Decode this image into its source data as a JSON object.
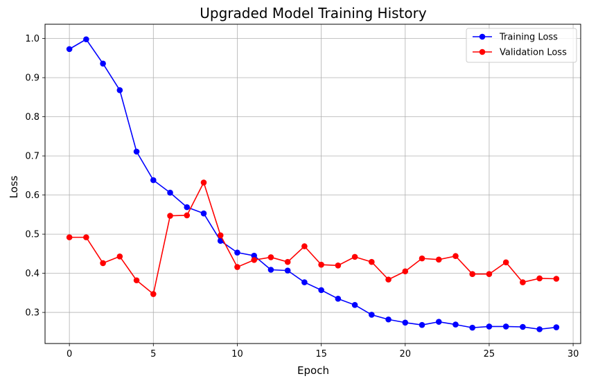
{
  "chart_data": {
    "type": "line",
    "title": "Upgraded Model Training History",
    "xlabel": "Epoch",
    "ylabel": "Loss",
    "xlim": [
      -1.45,
      30.45
    ],
    "ylim": [
      0.2205,
      1.0365
    ],
    "xticks": [
      0,
      5,
      10,
      15,
      20,
      25,
      30
    ],
    "yticks": [
      0.3,
      0.4,
      0.5,
      0.6,
      0.7,
      0.8,
      0.9,
      1.0
    ],
    "xtick_labels": [
      "0",
      "5",
      "10",
      "15",
      "20",
      "25",
      "30"
    ],
    "ytick_labels": [
      "0.3",
      "0.4",
      "0.5",
      "0.6",
      "0.7",
      "0.8",
      "0.9",
      "1.0"
    ],
    "grid": true,
    "legend_position": "top-right",
    "x": [
      0,
      1,
      2,
      3,
      4,
      5,
      6,
      7,
      8,
      9,
      10,
      11,
      12,
      13,
      14,
      15,
      16,
      17,
      18,
      19,
      20,
      21,
      22,
      23,
      24,
      25,
      26,
      27,
      28,
      29
    ],
    "series": [
      {
        "name": "Training Loss",
        "color": "#0000ff",
        "marker": "circle",
        "values": [
          0.973,
          0.998,
          0.936,
          0.868,
          0.711,
          0.638,
          0.606,
          0.569,
          0.553,
          0.483,
          0.453,
          0.445,
          0.409,
          0.407,
          0.377,
          0.357,
          0.335,
          0.319,
          0.294,
          0.282,
          0.274,
          0.268,
          0.276,
          0.269,
          0.261,
          0.264,
          0.264,
          0.263,
          0.257,
          0.262
        ]
      },
      {
        "name": "Validation Loss",
        "color": "#ff0000",
        "marker": "circle",
        "values": [
          0.492,
          0.492,
          0.426,
          0.443,
          0.382,
          0.347,
          0.547,
          0.548,
          0.632,
          0.497,
          0.416,
          0.434,
          0.441,
          0.429,
          0.469,
          0.422,
          0.42,
          0.442,
          0.429,
          0.384,
          0.405,
          0.438,
          0.435,
          0.444,
          0.398,
          0.398,
          0.428,
          0.377,
          0.387,
          0.386
        ]
      }
    ]
  }
}
